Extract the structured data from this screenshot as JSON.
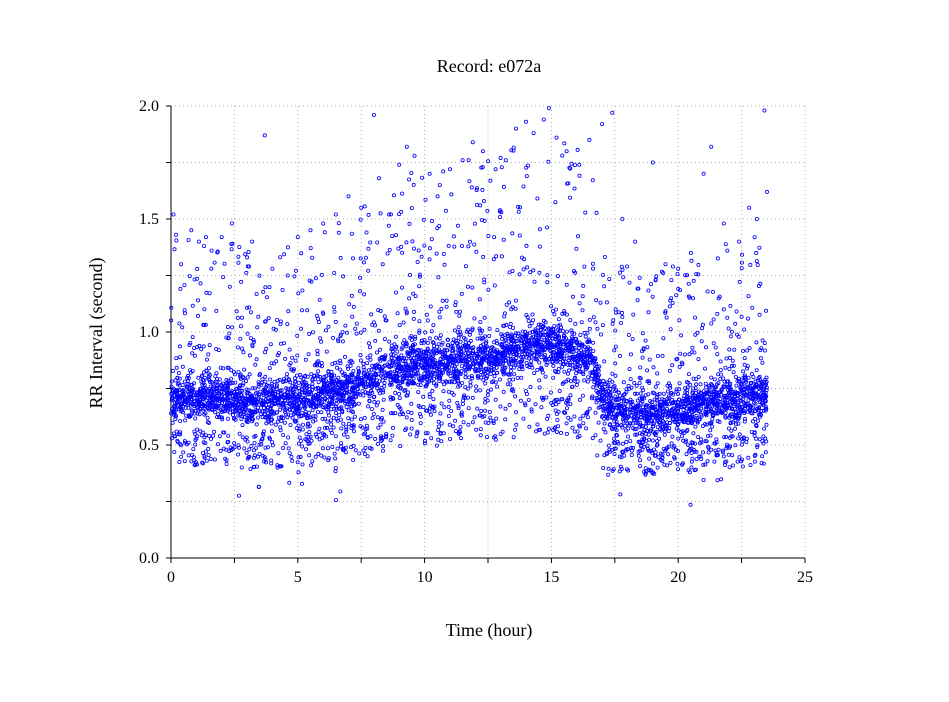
{
  "chart_data": {
    "type": "scatter",
    "title": "Record:  e072a",
    "xlabel": "Time (hour)",
    "ylabel": "RR Interval (second)",
    "xlim": [
      0,
      25
    ],
    "ylim": [
      0,
      2.0
    ],
    "xticks": [
      0,
      5,
      10,
      15,
      20,
      25
    ],
    "xtick_labels": [
      "0",
      "5",
      "10",
      "15",
      "20",
      "25"
    ],
    "yticks": [
      0,
      0.5,
      1.0,
      1.5,
      2.0
    ],
    "ytick_labels": [
      "0.0",
      "0.5",
      "1.0",
      "1.5",
      "2.0"
    ],
    "grid": true,
    "marker": "open circle",
    "series_color": "#0000ff",
    "x_range": [
      0,
      23.5
    ],
    "trend": [
      [
        0,
        0.72
      ],
      [
        0.5,
        0.71
      ],
      [
        1,
        0.7
      ],
      [
        1.5,
        0.72
      ],
      [
        2,
        0.7
      ],
      [
        2.5,
        0.7
      ],
      [
        3,
        0.68
      ],
      [
        3.5,
        0.69
      ],
      [
        4,
        0.68
      ],
      [
        4.5,
        0.7
      ],
      [
        5,
        0.69
      ],
      [
        5.5,
        0.7
      ],
      [
        6,
        0.72
      ],
      [
        6.5,
        0.74
      ],
      [
        7,
        0.76
      ],
      [
        7.5,
        0.78
      ],
      [
        8,
        0.8
      ],
      [
        8.5,
        0.82
      ],
      [
        9,
        0.84
      ],
      [
        9.5,
        0.86
      ],
      [
        10,
        0.86
      ],
      [
        10.5,
        0.85
      ],
      [
        11,
        0.87
      ],
      [
        11.5,
        0.89
      ],
      [
        12,
        0.89
      ],
      [
        12.5,
        0.88
      ],
      [
        13,
        0.9
      ],
      [
        13.5,
        0.92
      ],
      [
        14,
        0.93
      ],
      [
        14.5,
        0.94
      ],
      [
        15,
        0.95
      ],
      [
        15.5,
        0.92
      ],
      [
        16,
        0.91
      ],
      [
        16.5,
        0.9
      ],
      [
        17,
        0.7
      ],
      [
        17.5,
        0.66
      ],
      [
        18,
        0.65
      ],
      [
        18.5,
        0.63
      ],
      [
        19,
        0.62
      ],
      [
        19.5,
        0.64
      ],
      [
        20,
        0.65
      ],
      [
        20.5,
        0.66
      ],
      [
        21,
        0.68
      ],
      [
        21.5,
        0.69
      ],
      [
        22,
        0.7
      ],
      [
        22.5,
        0.71
      ],
      [
        23,
        0.72
      ],
      [
        23.5,
        0.72
      ]
    ],
    "outliers": [
      [
        0.1,
        1.52
      ],
      [
        0.2,
        1.43
      ],
      [
        0.4,
        1.3
      ],
      [
        0.8,
        1.45
      ],
      [
        1.1,
        1.4
      ],
      [
        1.3,
        1.38
      ],
      [
        1.6,
        1.36
      ],
      [
        2.0,
        1.42
      ],
      [
        2.4,
        1.48
      ],
      [
        3.0,
        1.33
      ],
      [
        3.2,
        1.4
      ],
      [
        3.7,
        1.87
      ],
      [
        4.0,
        1.28
      ],
      [
        4.6,
        1.25
      ],
      [
        5.0,
        1.42
      ],
      [
        5.5,
        1.45
      ],
      [
        6.0,
        1.48
      ],
      [
        6.5,
        1.52
      ],
      [
        7.0,
        1.6
      ],
      [
        7.5,
        1.55
      ],
      [
        8.0,
        1.96
      ],
      [
        8.2,
        1.68
      ],
      [
        8.6,
        1.52
      ],
      [
        9.0,
        1.74
      ],
      [
        9.3,
        1.82
      ],
      [
        9.6,
        1.78
      ],
      [
        10.2,
        1.7
      ],
      [
        10.6,
        1.65
      ],
      [
        11.0,
        1.72
      ],
      [
        11.5,
        1.76
      ],
      [
        11.9,
        1.84
      ],
      [
        12.3,
        1.8
      ],
      [
        12.8,
        1.72
      ],
      [
        13.2,
        1.76
      ],
      [
        13.6,
        1.9
      ],
      [
        14.0,
        1.93
      ],
      [
        14.3,
        1.88
      ],
      [
        14.7,
        1.94
      ],
      [
        14.9,
        1.99
      ],
      [
        15.2,
        1.86
      ],
      [
        15.6,
        1.8
      ],
      [
        16.1,
        1.74
      ],
      [
        16.5,
        1.85
      ],
      [
        17.0,
        1.92
      ],
      [
        17.4,
        1.97
      ],
      [
        17.8,
        1.5
      ],
      [
        18.3,
        1.4
      ],
      [
        19.0,
        1.75
      ],
      [
        19.5,
        1.3
      ],
      [
        20.0,
        1.28
      ],
      [
        20.5,
        1.35
      ],
      [
        21.0,
        1.7
      ],
      [
        21.3,
        1.82
      ],
      [
        21.8,
        1.48
      ],
      [
        22.4,
        1.4
      ],
      [
        22.8,
        1.55
      ],
      [
        23.1,
        1.5
      ],
      [
        23.4,
        1.98
      ],
      [
        23.5,
        1.62
      ]
    ]
  }
}
